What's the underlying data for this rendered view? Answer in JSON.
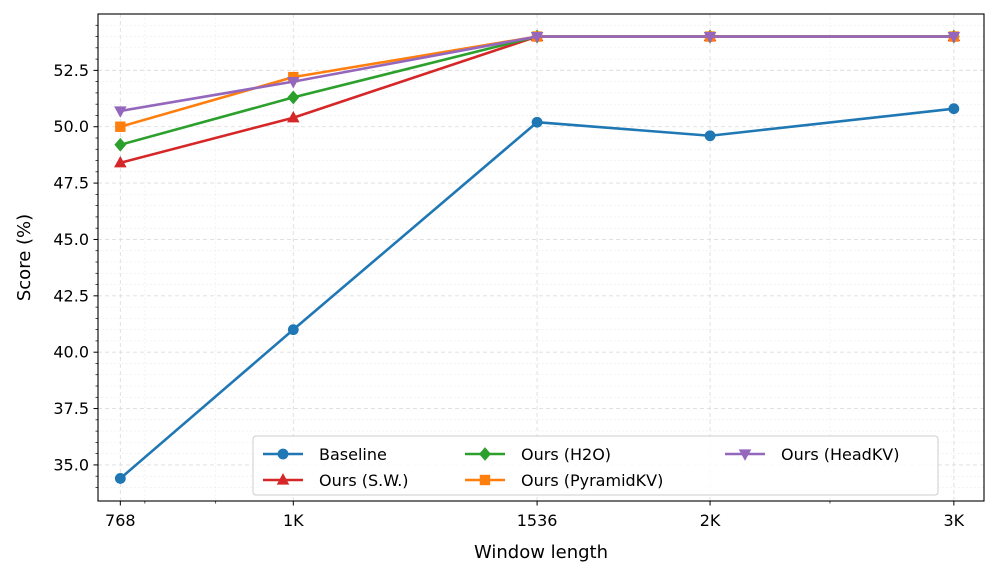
{
  "chart_data": {
    "type": "line",
    "title": "",
    "xlabel": "Window length",
    "ylabel": "Score (%)",
    "x_scale": "log",
    "x": [
      768,
      1024,
      1536,
      2048,
      3072
    ],
    "x_tick_labels": [
      "768",
      "1K",
      "1536",
      "2K",
      "3K"
    ],
    "ylim": [
      33.4,
      55.0
    ],
    "y_ticks": [
      35.0,
      37.5,
      40.0,
      42.5,
      45.0,
      47.5,
      50.0,
      52.5
    ],
    "y_tick_labels": [
      "35.0",
      "37.5",
      "40.0",
      "42.5",
      "45.0",
      "47.5",
      "50.0",
      "52.5"
    ],
    "grid": true,
    "legend_position": "bottom-center",
    "legend_columns": 3,
    "series": [
      {
        "name": "Baseline",
        "color": "#1f77b4",
        "marker": "circle",
        "values": [
          34.4,
          41.0,
          50.2,
          49.6,
          50.8
        ]
      },
      {
        "name": "Ours (S.W.)",
        "color": "#d62728",
        "marker": "triangle-up",
        "values": [
          48.4,
          50.4,
          54.0,
          54.0,
          54.0
        ]
      },
      {
        "name": "Ours (H2O)",
        "color": "#2ca02c",
        "marker": "diamond",
        "values": [
          49.2,
          51.3,
          54.0,
          54.0,
          54.0
        ]
      },
      {
        "name": "Ours (PyramidKV)",
        "color": "#ff7f0e",
        "marker": "square",
        "values": [
          50.0,
          52.2,
          54.0,
          54.0,
          54.0
        ]
      },
      {
        "name": "Ours (HeadKV)",
        "color": "#9467bd",
        "marker": "triangle-down",
        "values": [
          50.7,
          52.0,
          54.0,
          54.0,
          54.0
        ]
      }
    ]
  }
}
